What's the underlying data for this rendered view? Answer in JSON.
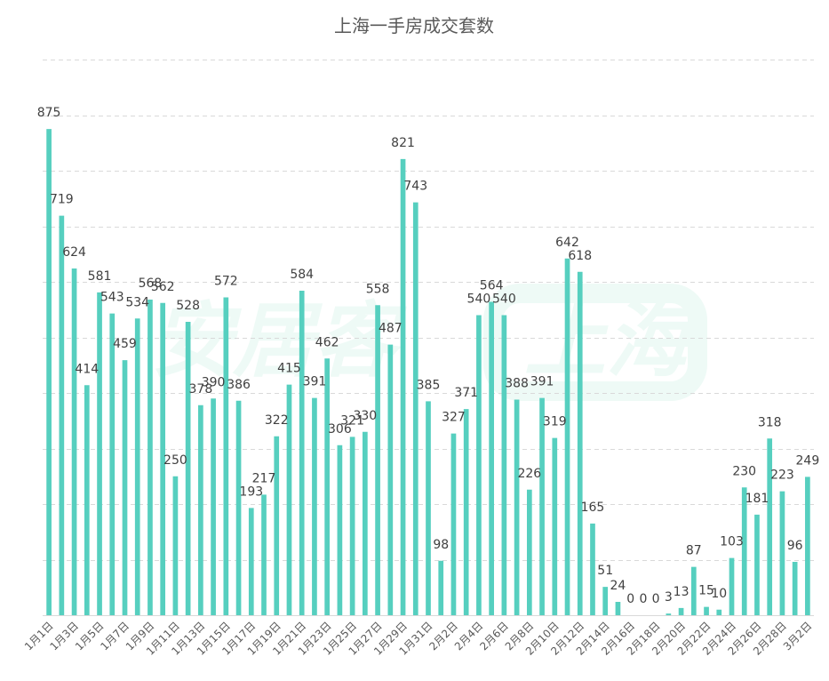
{
  "chart_data": {
    "type": "bar",
    "title": "上海一手房成交套数",
    "xlabel": "",
    "ylabel": "",
    "ylim": [
      0,
      1000
    ],
    "grid": true,
    "color": "#56cfbf",
    "categories": [
      "1月1日",
      "1月2日",
      "1月3日",
      "1月4日",
      "1月5日",
      "1月6日",
      "1月7日",
      "1月8日",
      "1月9日",
      "1月10日",
      "1月11日",
      "1月12日",
      "1月13日",
      "1月14日",
      "1月15日",
      "1月16日",
      "1月17日",
      "1月18日",
      "1月19日",
      "1月20日",
      "1月21日",
      "1月22日",
      "1月23日",
      "1月24日",
      "1月25日",
      "1月26日",
      "1月27日",
      "1月28日",
      "1月29日",
      "1月30日",
      "1月31日",
      "2月1日",
      "2月2日",
      "2月3日",
      "2月4日",
      "2月5日",
      "2月6日",
      "2月7日",
      "2月8日",
      "2月9日",
      "2月10日",
      "2月11日",
      "2月12日",
      "2月13日",
      "2月14日",
      "2月15日",
      "2月16日",
      "2月17日",
      "2月18日",
      "2月19日",
      "2月20日",
      "2月21日",
      "2月22日",
      "2月23日",
      "2月24日",
      "2月25日",
      "2月26日",
      "2月27日",
      "2月28日",
      "3月1日",
      "3月2日"
    ],
    "values": [
      875,
      719,
      624,
      414,
      581,
      543,
      459,
      534,
      568,
      562,
      250,
      528,
      378,
      390,
      572,
      386,
      193,
      217,
      322,
      415,
      584,
      391,
      462,
      306,
      321,
      330,
      558,
      487,
      821,
      743,
      385,
      98,
      327,
      371,
      540,
      564,
      540,
      388,
      226,
      391,
      319,
      642,
      618,
      165,
      51,
      24,
      0,
      0,
      0,
      3,
      13,
      87,
      15,
      10,
      103,
      230,
      181,
      318,
      223,
      96,
      249
    ]
  },
  "watermark": {
    "text": "安居客",
    "region": "上海"
  }
}
